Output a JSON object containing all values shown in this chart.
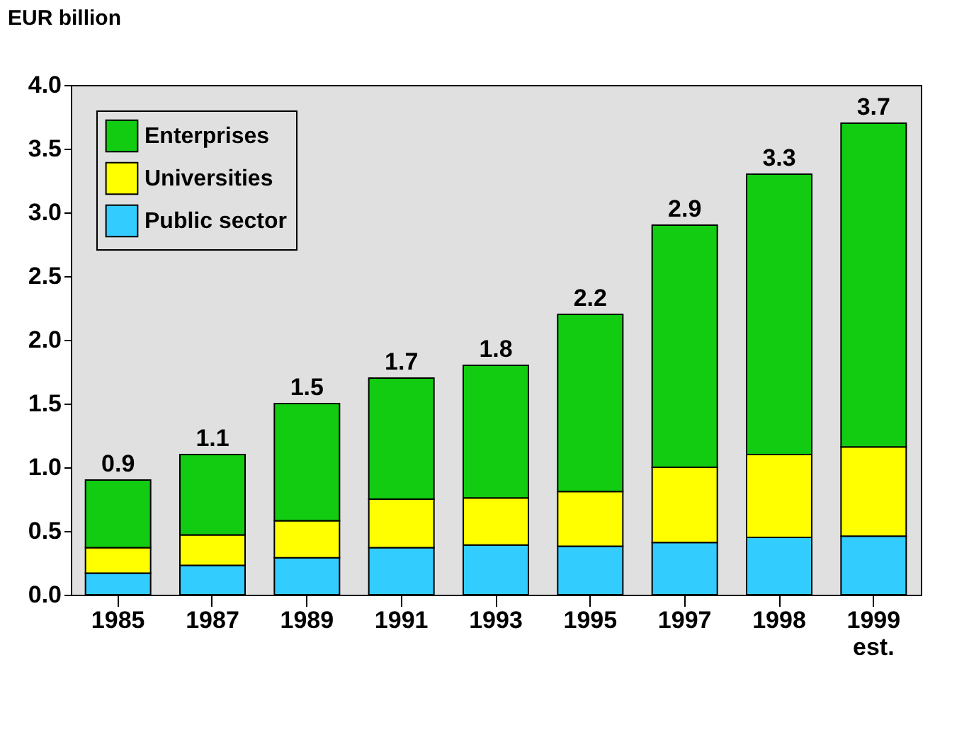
{
  "chart_data": {
    "type": "bar",
    "stacked": true,
    "ylabel": "EUR billion",
    "categories": [
      "1985",
      "1987",
      "1989",
      "1991",
      "1993",
      "1995",
      "1997",
      "1998",
      "1999\nest."
    ],
    "series": [
      {
        "name": "Public sector",
        "color": "#33ccff",
        "values": [
          0.17,
          0.23,
          0.29,
          0.37,
          0.39,
          0.38,
          0.41,
          0.45,
          0.46
        ]
      },
      {
        "name": "Universities",
        "color": "#ffff00",
        "values": [
          0.2,
          0.24,
          0.29,
          0.38,
          0.37,
          0.43,
          0.59,
          0.65,
          0.7
        ]
      },
      {
        "name": "Enterprises",
        "color": "#11cc11",
        "values": [
          0.53,
          0.63,
          0.92,
          0.95,
          1.04,
          1.39,
          1.9,
          2.2,
          2.54
        ]
      }
    ],
    "totals": [
      "0.9",
      "1.1",
      "1.5",
      "1.7",
      "1.8",
      "2.2",
      "2.9",
      "3.3",
      "3.7"
    ],
    "ylim": [
      0,
      4
    ],
    "yticks": [
      {
        "value": 0,
        "label": "0.0"
      },
      {
        "value": 0.5,
        "label": "0.5"
      },
      {
        "value": 1,
        "label": "1.0"
      },
      {
        "value": 1.5,
        "label": "1.5"
      },
      {
        "value": 2,
        "label": "2.0"
      },
      {
        "value": 2.5,
        "label": "2.5"
      },
      {
        "value": 3,
        "label": "3.0"
      },
      {
        "value": 3.5,
        "label": "3.5"
      },
      {
        "value": 4,
        "label": "4.0"
      }
    ],
    "grid": false,
    "legend": "top left"
  }
}
